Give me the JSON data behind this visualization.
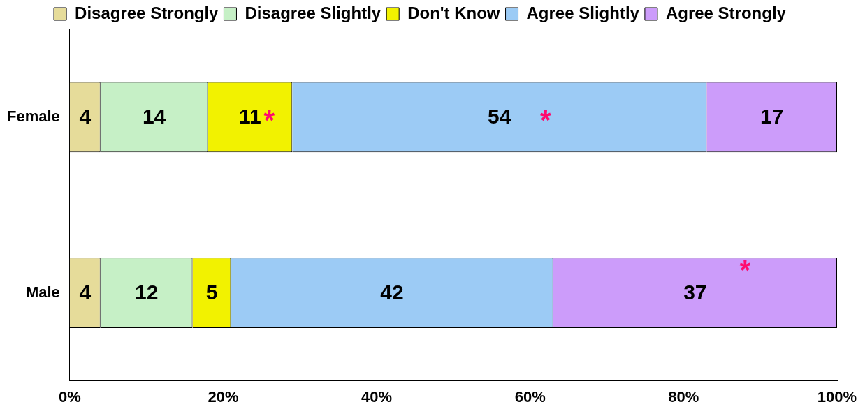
{
  "chart_data": {
    "type": "bar",
    "orientation": "horizontal",
    "stacked": true,
    "categories": [
      "Female",
      "Male"
    ],
    "series": [
      {
        "name": "Disagree Strongly",
        "color": "#e6dc9a",
        "values": [
          4,
          4
        ]
      },
      {
        "name": "Disagree Slightly",
        "color": "#c6f0c6",
        "values": [
          14,
          12
        ]
      },
      {
        "name": "Don't Know",
        "color": "#f2f200",
        "values": [
          11,
          5
        ]
      },
      {
        "name": "Agree Slightly",
        "color": "#9ccbf5",
        "values": [
          54,
          42
        ]
      },
      {
        "name": "Agree Strongly",
        "color": "#cc9cfa",
        "values": [
          17,
          37
        ]
      }
    ],
    "xlim": [
      0,
      100
    ],
    "xticks": [
      {
        "value": 0,
        "label": "0%"
      },
      {
        "value": 20,
        "label": "20%"
      },
      {
        "value": 40,
        "label": "40%"
      },
      {
        "value": 60,
        "label": "60%"
      },
      {
        "value": 80,
        "label": "80%"
      },
      {
        "value": 100,
        "label": "100%"
      }
    ],
    "data_labels": true,
    "grid": false,
    "legend": "top",
    "annotations": [
      "*",
      "*",
      "*"
    ]
  }
}
